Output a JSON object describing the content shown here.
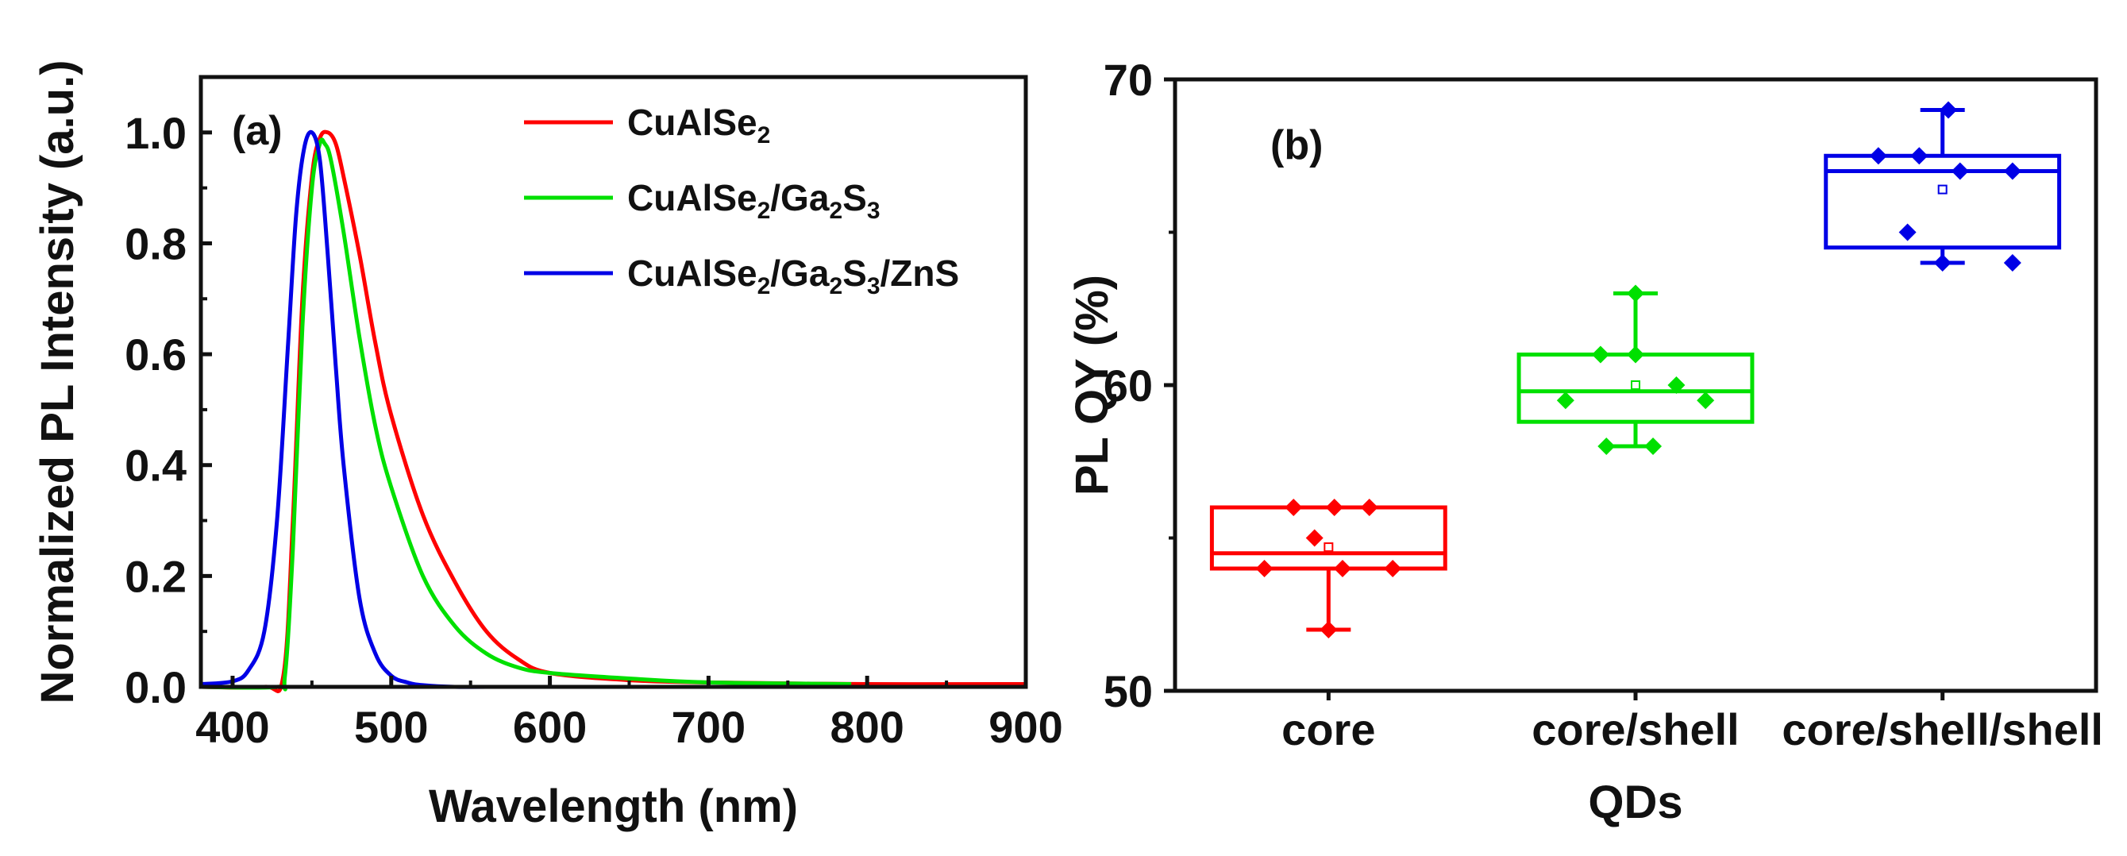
{
  "chart_data": [
    {
      "panel_label": "(a)",
      "type": "line",
      "xlabel": "Wavelength (nm)",
      "ylabel": "Normalized PL Intensity (a.u.)",
      "xlim": [
        380,
        900
      ],
      "ylim": [
        0,
        1.1
      ],
      "xticks": [
        "400",
        "500",
        "600",
        "700",
        "800",
        "900"
      ],
      "yticks": [
        "0.0",
        "0.2",
        "0.4",
        "0.6",
        "0.8",
        "1.0"
      ],
      "legend_position": "top-right",
      "series": [
        {
          "name": "CuAlSe2",
          "legend": {
            "parts": [
              "CuAlSe",
              "2"
            ]
          },
          "color": "#ff0000",
          "x": [
            380,
            420,
            432,
            438,
            444,
            450,
            455,
            460,
            465,
            470,
            480,
            490,
            500,
            520,
            540,
            560,
            580,
            600,
            650,
            700,
            800,
            900
          ],
          "y": [
            0.0,
            0.0,
            0.02,
            0.3,
            0.7,
            0.92,
            0.99,
            1.0,
            0.98,
            0.92,
            0.78,
            0.62,
            0.49,
            0.31,
            0.19,
            0.1,
            0.05,
            0.025,
            0.012,
            0.008,
            0.005,
            0.005
          ]
        },
        {
          "name": "CuAlSe2/Ga2S3",
          "legend": {
            "parts": [
              "CuAlSe",
              "2",
              "/Ga",
              "2",
              "S",
              "3"
            ]
          },
          "color": "#00e000",
          "x": [
            380,
            428,
            433,
            438,
            444,
            450,
            455,
            458,
            462,
            470,
            480,
            490,
            500,
            520,
            540,
            560,
            580,
            600,
            650,
            700,
            790
          ],
          "y": [
            0.0,
            0.0,
            0.02,
            0.25,
            0.65,
            0.9,
            0.98,
            0.98,
            0.95,
            0.82,
            0.63,
            0.47,
            0.36,
            0.2,
            0.11,
            0.06,
            0.035,
            0.025,
            0.015,
            0.008,
            0.005
          ]
        },
        {
          "name": "CuAlSe2/Ga2S3/ZnS",
          "legend": {
            "parts": [
              "CuAlSe",
              "2",
              "/Ga",
              "2",
              "S",
              "3",
              "/ZnS"
            ]
          },
          "color": "#0000e6",
          "x": [
            380,
            400,
            410,
            420,
            428,
            435,
            440,
            445,
            450,
            455,
            460,
            465,
            470,
            480,
            490,
            500,
            510,
            520,
            540,
            560,
            600,
            700
          ],
          "y": [
            0.005,
            0.01,
            0.03,
            0.1,
            0.3,
            0.62,
            0.85,
            0.97,
            1.0,
            0.95,
            0.78,
            0.58,
            0.4,
            0.16,
            0.06,
            0.02,
            0.008,
            0.003,
            0.0,
            0.0,
            0.0,
            0.0
          ]
        }
      ]
    },
    {
      "panel_label": "(b)",
      "type": "box",
      "xlabel": "QDs",
      "ylabel": "PL QY (%)",
      "ylim": [
        50,
        70
      ],
      "yticks": [
        "50",
        "60",
        "70"
      ],
      "categories": [
        "core",
        "core/shell",
        "core/shell/shell"
      ],
      "groups": [
        {
          "name": "core",
          "color": "#ff0000",
          "whisker_low": 52.0,
          "q1": 54.0,
          "median": 54.5,
          "q3": 56.0,
          "whisker_high": 56.0,
          "mean": 54.7,
          "points": [
            [
              -0.55,
              54.0
            ],
            [
              -0.3,
              56.0
            ],
            [
              -0.12,
              55.0
            ],
            [
              0.05,
              56.0
            ],
            [
              0.12,
              54.0
            ],
            [
              0.35,
              56.0
            ],
            [
              0.55,
              54.0
            ],
            [
              0.0,
              52.0
            ]
          ]
        },
        {
          "name": "core/shell",
          "color": "#00e000",
          "whisker_low": 58.0,
          "q1": 58.8,
          "median": 59.8,
          "q3": 61.0,
          "whisker_high": 63.0,
          "mean": 60.0,
          "points": [
            [
              -0.6,
              59.5
            ],
            [
              -0.3,
              61.0
            ],
            [
              -0.25,
              58.0
            ],
            [
              0.0,
              61.0
            ],
            [
              0.0,
              63.0
            ],
            [
              0.15,
              58.0
            ],
            [
              0.35,
              60.0
            ],
            [
              0.6,
              59.5
            ]
          ]
        },
        {
          "name": "core/shell/shell",
          "color": "#0000e6",
          "whisker_low": 64.0,
          "q1": 64.5,
          "median": 67.0,
          "q3": 67.5,
          "whisker_high": 69.0,
          "mean": 66.4,
          "points": [
            [
              -0.55,
              67.5
            ],
            [
              -0.3,
              65.0
            ],
            [
              -0.2,
              67.5
            ],
            [
              0.0,
              64.0
            ],
            [
              0.05,
              69.0
            ],
            [
              0.15,
              67.0
            ],
            [
              0.6,
              64.0
            ],
            [
              0.6,
              67.0
            ]
          ]
        }
      ]
    }
  ]
}
